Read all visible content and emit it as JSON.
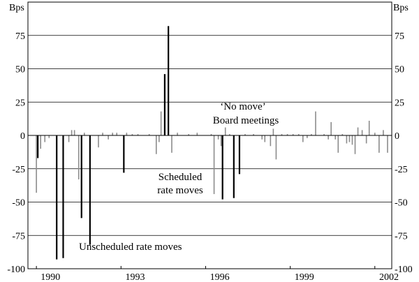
{
  "chart_data": {
    "type": "bar",
    "y_unit": "Bps",
    "ylim": [
      -100,
      100
    ],
    "y_ticks": [
      -100,
      -75,
      -50,
      -25,
      0,
      25,
      50,
      75
    ],
    "xlim": [
      1989.7,
      2002.6
    ],
    "x_ticks": [
      1990,
      1993,
      1996,
      1999,
      2002
    ],
    "grid": true,
    "series": [
      {
        "name": "Unscheduled rate moves",
        "color": "#000000",
        "points": [
          {
            "x": 1990.05,
            "y": -17
          },
          {
            "x": 1990.72,
            "y": -93
          },
          {
            "x": 1990.95,
            "y": -92
          },
          {
            "x": 1991.6,
            "y": -62
          },
          {
            "x": 1991.9,
            "y": -82
          },
          {
            "x": 1993.1,
            "y": -28
          },
          {
            "x": 1994.55,
            "y": 46
          },
          {
            "x": 1994.68,
            "y": 82
          }
        ]
      },
      {
        "name": "Scheduled rate moves",
        "color": "#000000",
        "points": [
          {
            "x": 1996.6,
            "y": -48
          },
          {
            "x": 1997.0,
            "y": -47
          },
          {
            "x": 1997.2,
            "y": -29
          }
        ]
      },
      {
        "name": "'No move' Board meetings",
        "color": "#8c8c8c",
        "points": [
          {
            "x": 1990.0,
            "y": -43
          },
          {
            "x": 1990.15,
            "y": -10
          },
          {
            "x": 1990.3,
            "y": -5
          },
          {
            "x": 1990.45,
            "y": -2
          },
          {
            "x": 1991.15,
            "y": -5
          },
          {
            "x": 1991.25,
            "y": 4
          },
          {
            "x": 1991.35,
            "y": 4
          },
          {
            "x": 1991.5,
            "y": -33
          },
          {
            "x": 1991.7,
            "y": 2
          },
          {
            "x": 1992.2,
            "y": -9
          },
          {
            "x": 1992.35,
            "y": 2
          },
          {
            "x": 1992.55,
            "y": -3
          },
          {
            "x": 1992.7,
            "y": 2
          },
          {
            "x": 1992.85,
            "y": 2
          },
          {
            "x": 1993.2,
            "y": 2
          },
          {
            "x": 1993.4,
            "y": 1
          },
          {
            "x": 1993.6,
            "y": 1
          },
          {
            "x": 1994.0,
            "y": 1
          },
          {
            "x": 1994.25,
            "y": -14
          },
          {
            "x": 1994.35,
            "y": -5
          },
          {
            "x": 1994.42,
            "y": 18
          },
          {
            "x": 1994.8,
            "y": -13
          },
          {
            "x": 1995.0,
            "y": 2
          },
          {
            "x": 1995.4,
            "y": 1
          },
          {
            "x": 1995.7,
            "y": 2
          },
          {
            "x": 1996.2,
            "y": 1
          },
          {
            "x": 1996.3,
            "y": -44
          },
          {
            "x": 1996.45,
            "y": -3
          },
          {
            "x": 1996.55,
            "y": -8
          },
          {
            "x": 1996.7,
            "y": 6
          },
          {
            "x": 1996.85,
            "y": 1
          },
          {
            "x": 1997.4,
            "y": 1
          },
          {
            "x": 1997.7,
            "y": 1
          },
          {
            "x": 1998.0,
            "y": -3
          },
          {
            "x": 1998.1,
            "y": -5
          },
          {
            "x": 1998.3,
            "y": -8
          },
          {
            "x": 1998.4,
            "y": 5
          },
          {
            "x": 1998.5,
            "y": -18
          },
          {
            "x": 1998.7,
            "y": 1
          },
          {
            "x": 1998.9,
            "y": 1
          },
          {
            "x": 1999.1,
            "y": 1
          },
          {
            "x": 1999.3,
            "y": 1
          },
          {
            "x": 1999.45,
            "y": -5
          },
          {
            "x": 1999.6,
            "y": -2
          },
          {
            "x": 1999.75,
            "y": 1
          },
          {
            "x": 1999.9,
            "y": 18
          },
          {
            "x": 2000.2,
            "y": 1
          },
          {
            "x": 2000.35,
            "y": -3
          },
          {
            "x": 2000.45,
            "y": 10
          },
          {
            "x": 2000.6,
            "y": -3
          },
          {
            "x": 2000.7,
            "y": -13
          },
          {
            "x": 2000.85,
            "y": 1
          },
          {
            "x": 2001.0,
            "y": -6
          },
          {
            "x": 2001.1,
            "y": -5
          },
          {
            "x": 2001.2,
            "y": -7
          },
          {
            "x": 2001.3,
            "y": -14
          },
          {
            "x": 2001.4,
            "y": 6
          },
          {
            "x": 2001.55,
            "y": 4
          },
          {
            "x": 2001.7,
            "y": -6
          },
          {
            "x": 2001.8,
            "y": 11
          },
          {
            "x": 2002.0,
            "y": 2
          },
          {
            "x": 2002.15,
            "y": -13
          },
          {
            "x": 2002.3,
            "y": 4
          },
          {
            "x": 2002.45,
            "y": -13
          }
        ]
      }
    ],
    "annotations": {
      "no_move_line1": "‘No move’",
      "no_move_line2": "Board meetings",
      "scheduled_line1": "Scheduled",
      "scheduled_line2": "rate moves",
      "unscheduled": "Unscheduled rate moves"
    }
  }
}
